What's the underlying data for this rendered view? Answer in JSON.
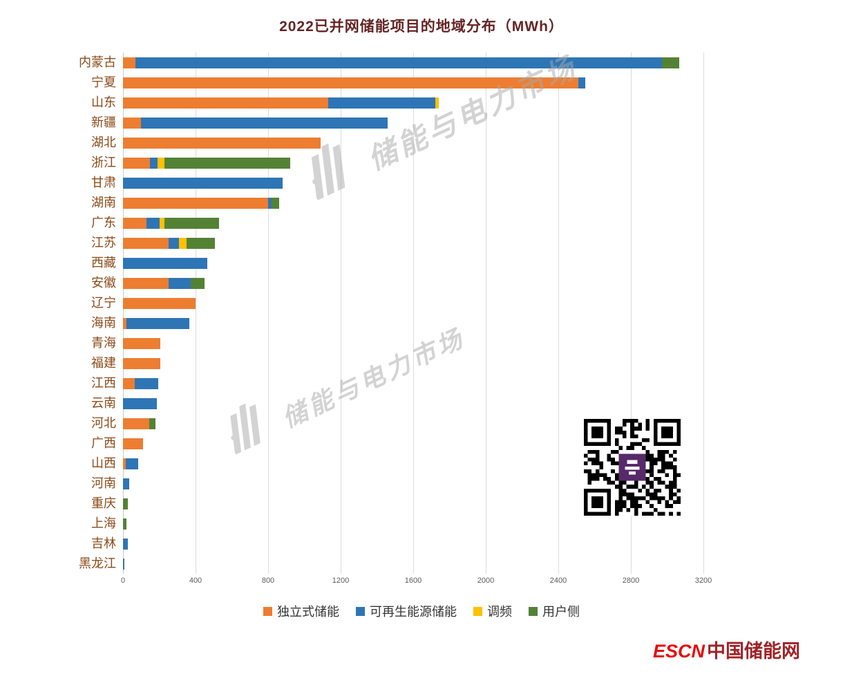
{
  "title": "2022已并网储能项目的地域分布（MWh）",
  "chart_data": {
    "type": "bar",
    "orientation": "horizontal",
    "stacked": true,
    "title": "2022已并网储能项目的地域分布（MWh）",
    "categories": [
      "内蒙古",
      "宁夏",
      "山东",
      "新疆",
      "湖北",
      "浙江",
      "甘肃",
      "湖南",
      "广东",
      "江苏",
      "西藏",
      "安徽",
      "辽宁",
      "海南",
      "青海",
      "福建",
      "江西",
      "云南",
      "河北",
      "广西",
      "山西",
      "河南",
      "重庆",
      "上海",
      "吉林",
      "黑龙江"
    ],
    "series": [
      {
        "name": "独立式储能",
        "color": "#ED7D31",
        "values": [
          70,
          2510,
          1130,
          100,
          1090,
          150,
          0,
          800,
          130,
          250,
          0,
          250,
          400,
          20,
          205,
          205,
          65,
          0,
          145,
          110,
          15,
          0,
          0,
          0,
          0,
          0
        ]
      },
      {
        "name": "可再生能源储能",
        "color": "#2E75B6",
        "values": [
          2900,
          40,
          590,
          1360,
          0,
          40,
          880,
          20,
          70,
          60,
          465,
          125,
          0,
          345,
          0,
          0,
          130,
          185,
          0,
          0,
          70,
          35,
          0,
          0,
          25,
          8
        ]
      },
      {
        "name": "调频",
        "color": "#FFC000",
        "values": [
          0,
          0,
          20,
          0,
          0,
          40,
          0,
          0,
          30,
          40,
          0,
          0,
          0,
          0,
          0,
          0,
          0,
          0,
          0,
          0,
          0,
          0,
          0,
          0,
          0,
          0
        ]
      },
      {
        "name": "用户侧",
        "color": "#548235",
        "values": [
          95,
          0,
          0,
          0,
          0,
          690,
          0,
          40,
          300,
          155,
          0,
          75,
          0,
          0,
          0,
          0,
          0,
          0,
          35,
          0,
          0,
          0,
          25,
          20,
          0,
          0
        ]
      }
    ],
    "x_ticks": [
      0,
      400,
      800,
      1200,
      1600,
      2000,
      2400,
      2800,
      3200
    ],
    "xlim": [
      0,
      3375
    ],
    "grid": true,
    "legend_position": "bottom"
  },
  "watermark": {
    "text": "储能与电力市场"
  },
  "branding": {
    "escn": "ESCN",
    "site": "中国储能网"
  }
}
